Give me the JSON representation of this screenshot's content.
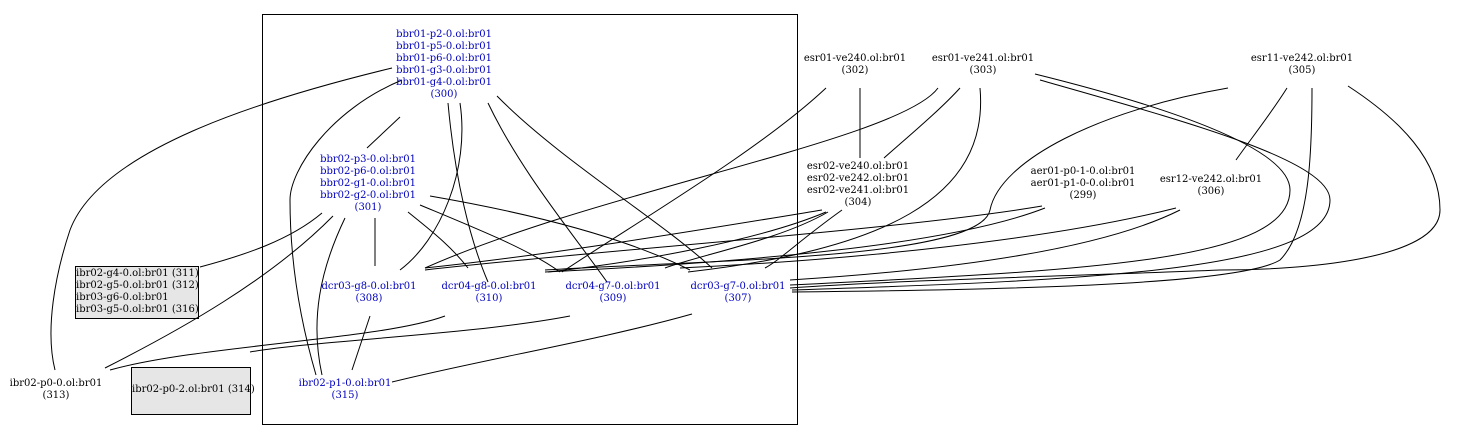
{
  "colors": {
    "internal_link": "#0000c0",
    "external_text": "#000000",
    "box_fill": "#e6e6e6",
    "edge": "#000000"
  },
  "nodes": {
    "bbr01": {
      "lines": [
        "bbr01-p2-0.ol:br01",
        "bbr01-p5-0.ol:br01",
        "bbr01-p6-0.ol:br01",
        "bbr01-g3-0.ol:br01",
        "bbr01-g4-0.ol:br01"
      ],
      "id": "(300)"
    },
    "bbr02": {
      "lines": [
        "bbr02-p3-0.ol:br01",
        "bbr02-p6-0.ol:br01",
        "bbr02-g1-0.ol:br01",
        "bbr02-g2-0.ol:br01"
      ],
      "id": "(301)"
    },
    "dcr03_g8": {
      "lines": [
        "dcr03-g8-0.ol:br01"
      ],
      "id": "(308)"
    },
    "dcr04_g8": {
      "lines": [
        "dcr04-g8-0.ol:br01"
      ],
      "id": "(310)"
    },
    "dcr04_g7": {
      "lines": [
        "dcr04-g7-0.ol:br01"
      ],
      "id": "(309)"
    },
    "dcr03_g7": {
      "lines": [
        "dcr03-g7-0.ol:br01"
      ],
      "id": "(307)"
    },
    "ibr02_p1": {
      "lines": [
        "ibr02-p1-0.ol:br01"
      ],
      "id": "(315)"
    },
    "esr01_ve240": {
      "lines": [
        "esr01-ve240.ol:br01"
      ],
      "id": "(302)"
    },
    "esr01_ve241": {
      "lines": [
        "esr01-ve241.ol:br01"
      ],
      "id": "(303)"
    },
    "esr11_ve242": {
      "lines": [
        "esr11-ve242.ol:br01"
      ],
      "id": "(305)"
    },
    "esr02": {
      "lines": [
        "esr02-ve240.ol:br01",
        "esr02-ve242.ol:br01",
        "esr02-ve241.ol:br01"
      ],
      "id": "(304)"
    },
    "aer01": {
      "lines": [
        "aer01-p0-1-0.ol:br01",
        "aer01-p1-0-0.ol:br01"
      ],
      "id": "(299)"
    },
    "esr12_ve242": {
      "lines": [
        "esr12-ve242.ol:br01"
      ],
      "id": "(306)"
    },
    "ibr02_p0_0": {
      "lines": [
        "ibr02-p0-0.ol:br01"
      ],
      "id": "(313)"
    },
    "box_left": {
      "lines": [
        "ibr02-g4-0.ol:br01 (311)",
        "ibr02-g5-0.ol:br01 (312)",
        "ibr03-g6-0.ol:br01",
        "ibr03-g5-0.ol:br01 (316)"
      ]
    },
    "box_bottom": {
      "lines": [
        "ibr02-p0-2.ol:br01 (314)"
      ]
    }
  }
}
